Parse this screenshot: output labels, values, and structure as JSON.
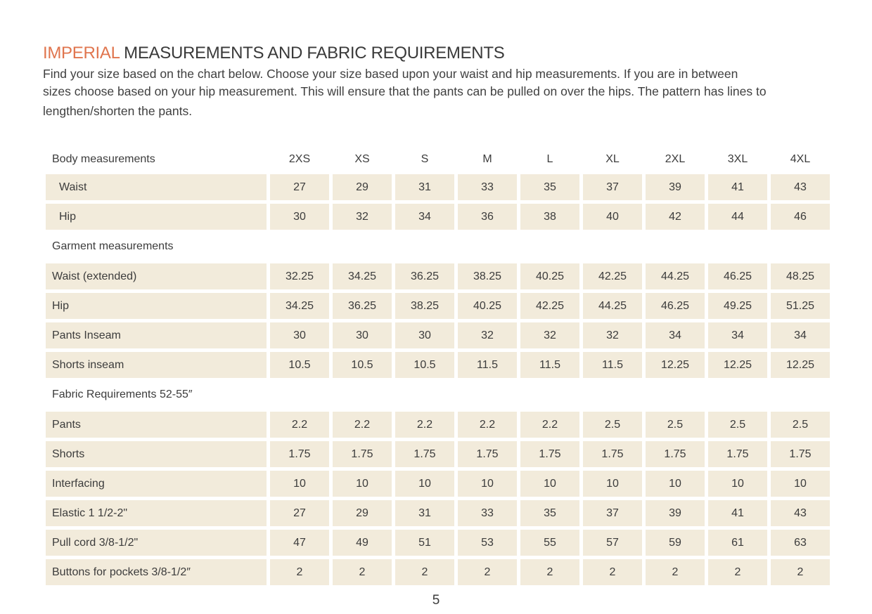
{
  "page": {
    "title_highlight": "IMPERIAL",
    "title_rest": "MEASUREMENTS AND FABRIC REQUIREMENTS",
    "intro_lines": [
      "Find your size based on the chart below. Choose your size based upon your waist and hip measurements. If you are in between",
      "sizes choose based on your hip measurement. This will ensure that the pants can be pulled on over the hips. The pattern has lines to",
      "lengthen/shorten the pants."
    ],
    "page_number": "5"
  },
  "colors": {
    "accent_orange": "#e0754e",
    "cell_beige": "#f2ebdb",
    "text_dark": "#3b3b3b",
    "background": "#ffffff"
  },
  "chart_data": {
    "type": "table",
    "title": "Imperial measurements and fabric requirements",
    "size_columns": [
      "2XS",
      "XS",
      "S",
      "M",
      "L",
      "XL",
      "2XL",
      "3XL",
      "4XL"
    ],
    "sections": [
      {
        "header": "Body measurements",
        "rows": [
          {
            "label": "Waist",
            "indent": true,
            "values": [
              "27",
              "29",
              "31",
              "33",
              "35",
              "37",
              "39",
              "41",
              "43"
            ]
          },
          {
            "label": "Hip",
            "indent": true,
            "values": [
              "30",
              "32",
              "34",
              "36",
              "38",
              "40",
              "42",
              "44",
              "46"
            ]
          }
        ]
      },
      {
        "header": "Garment measurements",
        "rows": [
          {
            "label": "Waist (extended)",
            "indent": false,
            "values": [
              "32.25",
              "34.25",
              "36.25",
              "38.25",
              "40.25",
              "42.25",
              "44.25",
              "46.25",
              "48.25"
            ]
          },
          {
            "label": "Hip",
            "indent": false,
            "values": [
              "34.25",
              "36.25",
              "38.25",
              "40.25",
              "42.25",
              "44.25",
              "46.25",
              "49.25",
              "51.25"
            ]
          },
          {
            "label": "Pants Inseam",
            "indent": false,
            "values": [
              "30",
              "30",
              "30",
              "32",
              "32",
              "32",
              "34",
              "34",
              "34"
            ]
          },
          {
            "label": "Shorts inseam",
            "indent": false,
            "values": [
              "10.5",
              "10.5",
              "10.5",
              "11.5",
              "11.5",
              "11.5",
              "12.25",
              "12.25",
              "12.25"
            ]
          }
        ]
      },
      {
        "header": "Fabric Requirements 52-55″",
        "rows": [
          {
            "label": "Pants",
            "indent": false,
            "values": [
              "2.2",
              "2.2",
              "2.2",
              "2.2",
              "2.2",
              "2.5",
              "2.5",
              "2.5",
              "2.5"
            ]
          },
          {
            "label": "Shorts",
            "indent": false,
            "values": [
              "1.75",
              "1.75",
              "1.75",
              "1.75",
              "1.75",
              "1.75",
              "1.75",
              "1.75",
              "1.75"
            ]
          },
          {
            "label": "Interfacing",
            "indent": false,
            "values": [
              "10",
              "10",
              "10",
              "10",
              "10",
              "10",
              "10",
              "10",
              "10"
            ]
          },
          {
            "label": "Elastic 1 1/2-2\"",
            "indent": false,
            "values": [
              "27",
              "29",
              "31",
              "33",
              "35",
              "37",
              "39",
              "41",
              "43"
            ]
          },
          {
            "label": "Pull cord 3/8-1/2\"",
            "indent": false,
            "values": [
              "47",
              "49",
              "51",
              "53",
              "55",
              "57",
              "59",
              "61",
              "63"
            ]
          },
          {
            "label": "Buttons for pockets 3/8-1/2″",
            "indent": false,
            "values": [
              "2",
              "2",
              "2",
              "2",
              "2",
              "2",
              "2",
              "2",
              "2"
            ]
          }
        ]
      }
    ]
  }
}
